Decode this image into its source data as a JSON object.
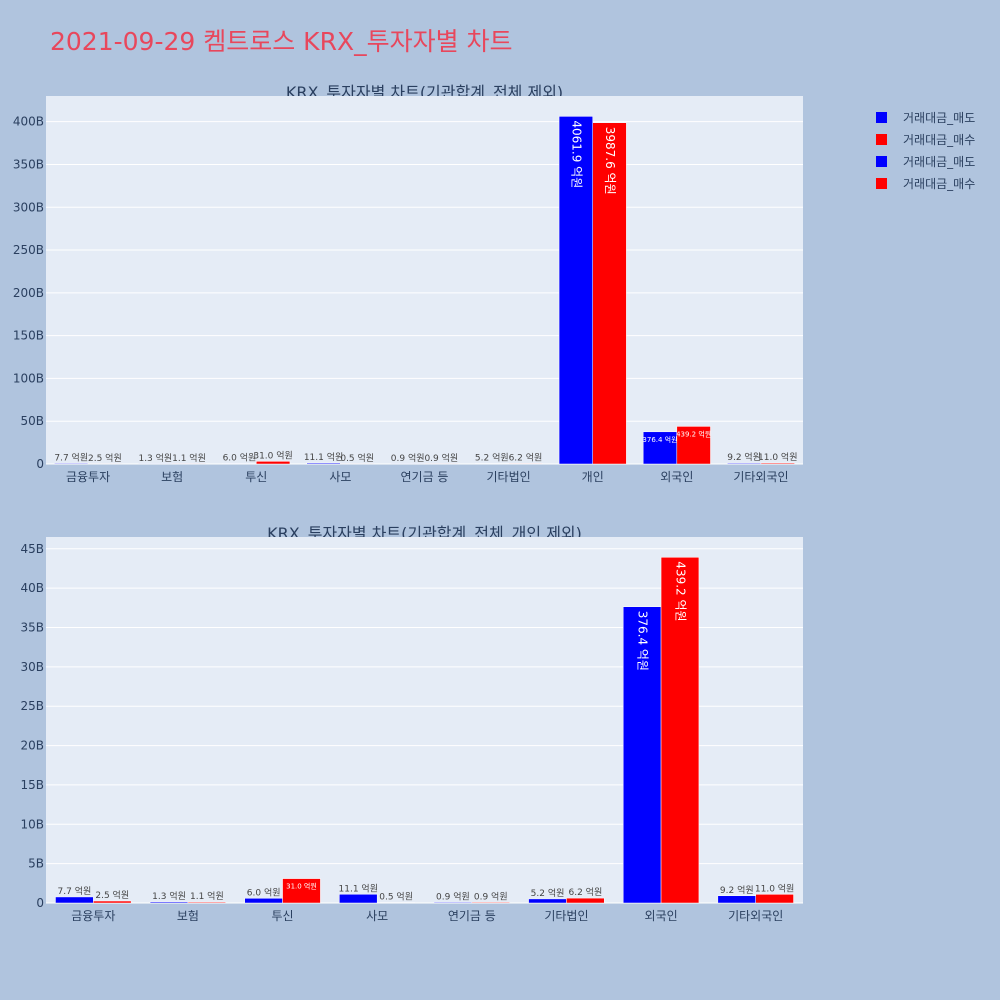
{
  "page": {
    "title": "2021-09-29 켐트로스 KRX_투자자별 차트"
  },
  "legend": {
    "items": [
      {
        "label": "거래대금_매도",
        "color": "#0000ff"
      },
      {
        "label": "거래대금_매수",
        "color": "#ff0000"
      },
      {
        "label": "거래대금_매도",
        "color": "#0000ff"
      },
      {
        "label": "거래대금_매수",
        "color": "#ff0000"
      }
    ]
  },
  "chart_data": [
    {
      "type": "bar",
      "title": "KRX_투자자별 차트(기관합계_전체 제외)",
      "categories": [
        "금융투자",
        "보험",
        "투신",
        "사모",
        "연기금 등",
        "기타법인",
        "개인",
        "외국인",
        "기타외국인"
      ],
      "series": [
        {
          "name": "거래대금_매도",
          "color": "#0000ff",
          "values": [
            770000000,
            130000000,
            600000000,
            1110000000,
            90000000,
            520000000,
            406190000000,
            37640000000,
            920000000
          ],
          "labels": [
            "7.7 억원",
            "1.3 억원",
            "6.0 억원",
            "11.1 억원",
            "0.9 억원",
            "5.2 억원",
            "4061.9 억원",
            "376.4 억원",
            "9.2 억원"
          ]
        },
        {
          "name": "거래대금_매수",
          "color": "#ff0000",
          "values": [
            250000000,
            110000000,
            3100000000,
            50000000,
            90000000,
            620000000,
            398760000000,
            43920000000,
            1100000000
          ],
          "labels": [
            "2.5 억원",
            "1.1 억원",
            "31.0 억원",
            "0.5 억원",
            "0.9 억원",
            "6.2 억원",
            "3987.6 억원",
            "439.2 억원",
            "11.0 억원"
          ]
        }
      ],
      "ylim": [
        0,
        430000000000
      ],
      "yticks": [
        0,
        50000000000,
        100000000000,
        150000000000,
        200000000000,
        250000000000,
        300000000000,
        350000000000,
        400000000000
      ],
      "ytick_labels": [
        "0",
        "50B",
        "100B",
        "150B",
        "200B",
        "250B",
        "300B",
        "350B",
        "400B"
      ],
      "grid": true
    },
    {
      "type": "bar",
      "title": "KRX_투자자별 차트(기관합계_전체_개인 제외)",
      "categories": [
        "금융투자",
        "보험",
        "투신",
        "사모",
        "연기금 등",
        "기타법인",
        "외국인",
        "기타외국인"
      ],
      "series": [
        {
          "name": "거래대금_매도",
          "color": "#0000ff",
          "values": [
            770000000,
            130000000,
            600000000,
            1110000000,
            90000000,
            520000000,
            37640000000,
            920000000
          ],
          "labels": [
            "7.7 억원",
            "1.3 억원",
            "6.0 억원",
            "11.1 억원",
            "0.9 억원",
            "5.2 억원",
            "376.4 억원",
            "9.2 억원"
          ]
        },
        {
          "name": "거래대금_매수",
          "color": "#ff0000",
          "values": [
            250000000,
            110000000,
            3100000000,
            50000000,
            90000000,
            620000000,
            43920000000,
            1100000000
          ],
          "labels": [
            "2.5 억원",
            "1.1 억원",
            "31.0 억원",
            "0.5 억원",
            "0.9 억원",
            "6.2 억원",
            "439.2 억원",
            "11.0 억원"
          ]
        }
      ],
      "ylim": [
        0,
        46500000000
      ],
      "yticks": [
        0,
        5000000000,
        10000000000,
        15000000000,
        20000000000,
        25000000000,
        30000000000,
        35000000000,
        40000000000,
        45000000000
      ],
      "ytick_labels": [
        "0",
        "5B",
        "10B",
        "15B",
        "20B",
        "25B",
        "30B",
        "35B",
        "40B",
        "45B"
      ],
      "grid": true
    }
  ]
}
